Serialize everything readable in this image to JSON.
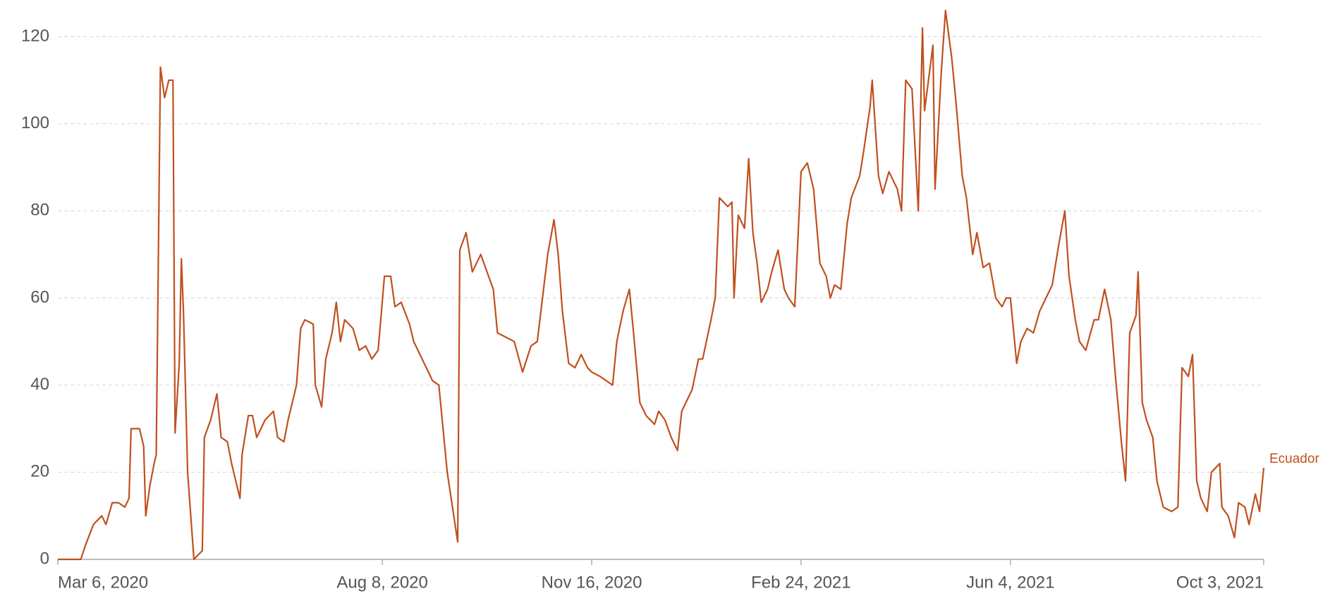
{
  "chart_data": {
    "type": "line",
    "x": [
      "2020-03-06",
      "2020-03-17",
      "2020-03-19",
      "2020-03-23",
      "2020-03-27",
      "2020-03-29",
      "2020-04-01",
      "2020-04-04",
      "2020-04-07",
      "2020-04-09",
      "2020-04-10",
      "2020-04-14",
      "2020-04-16",
      "2020-04-17",
      "2020-04-19",
      "2020-04-21",
      "2020-04-22",
      "2020-04-24",
      "2020-04-26",
      "2020-04-28",
      "2020-04-30",
      "2020-05-01",
      "2020-05-03",
      "2020-05-04",
      "2020-05-05",
      "2020-05-07",
      "2020-05-10",
      "2020-05-14",
      "2020-05-15",
      "2020-05-18",
      "2020-05-21",
      "2020-05-23",
      "2020-05-26",
      "2020-05-28",
      "2020-06-01",
      "2020-06-02",
      "2020-06-05",
      "2020-06-07",
      "2020-06-09",
      "2020-06-13",
      "2020-06-17",
      "2020-06-19",
      "2020-06-22",
      "2020-06-24",
      "2020-06-28",
      "2020-06-30",
      "2020-07-02",
      "2020-07-06",
      "2020-07-07",
      "2020-07-10",
      "2020-07-12",
      "2020-07-15",
      "2020-07-17",
      "2020-07-19",
      "2020-07-21",
      "2020-07-25",
      "2020-07-28",
      "2020-07-31",
      "2020-08-03",
      "2020-08-06",
      "2020-08-09",
      "2020-08-12",
      "2020-08-14",
      "2020-08-17",
      "2020-08-21",
      "2020-08-23",
      "2020-08-26",
      "2020-08-29",
      "2020-09-01",
      "2020-09-04",
      "2020-09-08",
      "2020-09-13",
      "2020-09-14",
      "2020-09-17",
      "2020-09-20",
      "2020-09-24",
      "2020-09-27",
      "2020-09-30",
      "2020-10-02",
      "2020-10-06",
      "2020-10-10",
      "2020-10-14",
      "2020-10-18",
      "2020-10-21",
      "2020-10-23",
      "2020-10-26",
      "2020-10-29",
      "2020-10-31",
      "2020-11-02",
      "2020-11-05",
      "2020-11-08",
      "2020-11-11",
      "2020-11-14",
      "2020-11-16",
      "2020-11-20",
      "2020-11-26",
      "2020-11-28",
      "2020-12-01",
      "2020-12-04",
      "2020-12-06",
      "2020-12-09",
      "2020-12-12",
      "2020-12-16",
      "2020-12-18",
      "2020-12-21",
      "2020-12-24",
      "2020-12-27",
      "2020-12-29",
      "2021-01-03",
      "2021-01-06",
      "2021-01-08",
      "2021-01-12",
      "2021-01-14",
      "2021-01-16",
      "2021-01-20",
      "2021-01-22",
      "2021-01-23",
      "2021-01-25",
      "2021-01-28",
      "2021-01-30",
      "2021-02-01",
      "2021-02-03",
      "2021-02-05",
      "2021-02-08",
      "2021-02-10",
      "2021-02-13",
      "2021-02-16",
      "2021-02-18",
      "2021-02-21",
      "2021-02-24",
      "2021-02-27",
      "2021-03-02",
      "2021-03-05",
      "2021-03-08",
      "2021-03-10",
      "2021-03-12",
      "2021-03-15",
      "2021-03-18",
      "2021-03-20",
      "2021-03-24",
      "2021-03-26",
      "2021-03-29",
      "2021-03-30",
      "2021-04-02",
      "2021-04-04",
      "2021-04-07",
      "2021-04-11",
      "2021-04-13",
      "2021-04-15",
      "2021-04-18",
      "2021-04-21",
      "2021-04-23",
      "2021-04-24",
      "2021-04-28",
      "2021-04-29",
      "2021-05-02",
      "2021-05-04",
      "2021-05-07",
      "2021-05-09",
      "2021-05-12",
      "2021-05-14",
      "2021-05-17",
      "2021-05-19",
      "2021-05-22",
      "2021-05-25",
      "2021-05-28",
      "2021-05-31",
      "2021-06-02",
      "2021-06-04",
      "2021-06-07",
      "2021-06-09",
      "2021-06-12",
      "2021-06-15",
      "2021-06-18",
      "2021-06-21",
      "2021-06-24",
      "2021-06-27",
      "2021-06-30",
      "2021-07-02",
      "2021-07-05",
      "2021-07-07",
      "2021-07-10",
      "2021-07-14",
      "2021-07-16",
      "2021-07-19",
      "2021-07-22",
      "2021-07-24",
      "2021-07-27",
      "2021-07-29",
      "2021-07-31",
      "2021-08-03",
      "2021-08-04",
      "2021-08-06",
      "2021-08-08",
      "2021-08-11",
      "2021-08-13",
      "2021-08-16",
      "2021-08-20",
      "2021-08-23",
      "2021-08-25",
      "2021-08-28",
      "2021-08-30",
      "2021-09-01",
      "2021-09-03",
      "2021-09-06",
      "2021-09-08",
      "2021-09-12",
      "2021-09-13",
      "2021-09-16",
      "2021-09-19",
      "2021-09-21",
      "2021-09-24",
      "2021-09-26",
      "2021-09-29",
      "2021-10-01",
      "2021-10-03"
    ],
    "series": [
      {
        "name": "Ecuador",
        "color": "#c0501e",
        "values": [
          0,
          0,
          3,
          8,
          10,
          8,
          13,
          13,
          12,
          14,
          30,
          30,
          26,
          10,
          17,
          22,
          24,
          113,
          106,
          110,
          110,
          29,
          45,
          69,
          57,
          20,
          0,
          2,
          28,
          32,
          38,
          28,
          27,
          22,
          14,
          24,
          33,
          33,
          28,
          32,
          34,
          28,
          27,
          32,
          40,
          53,
          55,
          54,
          40,
          35,
          46,
          52,
          59,
          50,
          55,
          53,
          48,
          49,
          46,
          48,
          65,
          65,
          58,
          59,
          54,
          50,
          47,
          44,
          41,
          40,
          20,
          4,
          71,
          75,
          66,
          70,
          66,
          62,
          52,
          51,
          50,
          43,
          49,
          50,
          58,
          70,
          78,
          70,
          57,
          45,
          44,
          47,
          44,
          43,
          42,
          40,
          50,
          57,
          62,
          52,
          36,
          33,
          31,
          34,
          32,
          28,
          25,
          34,
          39,
          46,
          46,
          55,
          60,
          83,
          81,
          82,
          60,
          79,
          76,
          92,
          75,
          68,
          59,
          62,
          66,
          71,
          62,
          60,
          58,
          89,
          91,
          85,
          68,
          65,
          60,
          63,
          62,
          77,
          83,
          88,
          94,
          104,
          110,
          88,
          84,
          89,
          85,
          80,
          110,
          108,
          80,
          122,
          103,
          118,
          85,
          112,
          126,
          115,
          105,
          88,
          83,
          70,
          75,
          67,
          68,
          60,
          58,
          60,
          60,
          45,
          50,
          53,
          52,
          57,
          60,
          63,
          72,
          80,
          65,
          55,
          50,
          48,
          55,
          55,
          62,
          55,
          43,
          27,
          18,
          52,
          56,
          66,
          36,
          32,
          28,
          18,
          12,
          11,
          12,
          44,
          42,
          47,
          18,
          14,
          11,
          20,
          22,
          12,
          10,
          5,
          13,
          12,
          8,
          15,
          11,
          21
        ]
      }
    ],
    "xlim": [
      "2020-03-06",
      "2021-10-03"
    ],
    "xticks": [
      {
        "value": "2020-03-06",
        "label": "Mar 6, 2020"
      },
      {
        "value": "2020-08-08",
        "label": "Aug 8, 2020"
      },
      {
        "value": "2020-11-16",
        "label": "Nov 16, 2020"
      },
      {
        "value": "2021-02-24",
        "label": "Feb 24, 2021"
      },
      {
        "value": "2021-06-04",
        "label": "Jun 4, 2021"
      },
      {
        "value": "2021-10-03",
        "label": "Oct 3, 2021"
      }
    ],
    "ylim": [
      0,
      120
    ],
    "yticks": [
      0,
      20,
      40,
      60,
      80,
      100,
      120
    ],
    "grid": true
  }
}
